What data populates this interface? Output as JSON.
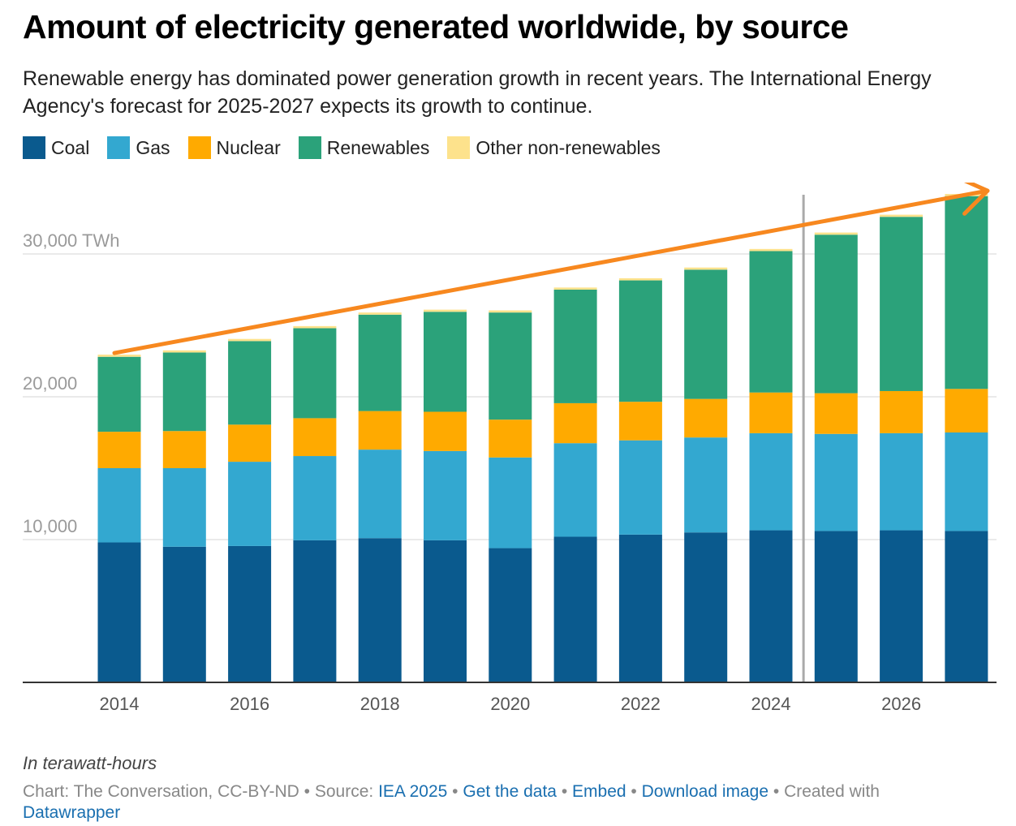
{
  "header": {
    "title": "Amount of electricity generated worldwide, by source",
    "subtitle": "Renewable energy has dominated power generation growth in recent years. The International Energy Agency's forecast for 2025-2027 expects its growth to continue."
  },
  "legend": [
    {
      "label": "Coal",
      "color": "#0a5a8e"
    },
    {
      "label": "Gas",
      "color": "#33a8d0"
    },
    {
      "label": "Nuclear",
      "color": "#ffaa00"
    },
    {
      "label": "Renewables",
      "color": "#2ba27a"
    },
    {
      "label": "Other non-renewables",
      "color": "#fde28c"
    }
  ],
  "chart_data": {
    "type": "bar",
    "stacked": true,
    "title": "Amount of electricity generated worldwide, by source",
    "x": [
      2014,
      2015,
      2016,
      2017,
      2018,
      2019,
      2020,
      2021,
      2022,
      2023,
      2024,
      2025,
      2026,
      2027
    ],
    "x_tick_labels": [
      "2014",
      "2016",
      "2018",
      "2020",
      "2022",
      "2024",
      "2026"
    ],
    "y_tick_labels": [
      "30,000 TWh",
      "20,000",
      "10,000"
    ],
    "y_ticks": [
      30000,
      20000,
      10000
    ],
    "ylim": [
      0,
      34500
    ],
    "unit_note": "In terawatt-hours",
    "forecast_from": 2025,
    "grid": true,
    "legend_position": "top-left",
    "series": [
      {
        "name": "Coal",
        "color": "#0a5a8e",
        "values": [
          9800,
          9500,
          9550,
          9950,
          10100,
          9950,
          9400,
          10200,
          10350,
          10500,
          10650,
          10600,
          10650,
          10600
        ]
      },
      {
        "name": "Gas",
        "color": "#33a8d0",
        "values": [
          5200,
          5500,
          5900,
          5900,
          6200,
          6250,
          6350,
          6550,
          6600,
          6650,
          6800,
          6800,
          6800,
          6900
        ]
      },
      {
        "name": "Nuclear",
        "color": "#ffaa00",
        "values": [
          2550,
          2600,
          2600,
          2650,
          2700,
          2750,
          2650,
          2800,
          2700,
          2700,
          2850,
          2850,
          2950,
          3050
        ]
      },
      {
        "name": "Renewables",
        "color": "#2ba27a",
        "values": [
          5250,
          5500,
          5850,
          6300,
          6750,
          7000,
          7500,
          7950,
          8500,
          9050,
          9900,
          11100,
          12200,
          13500
        ]
      },
      {
        "name": "Other non-renewables",
        "color": "#fde28c",
        "values": [
          150,
          150,
          150,
          150,
          150,
          150,
          150,
          150,
          150,
          150,
          150,
          150,
          150,
          150
        ]
      }
    ]
  },
  "footer": {
    "unit_note": "In terawatt-hours",
    "chart_credit": "Chart: The Conversation, CC-BY-ND",
    "source_label": "Source:",
    "source_link": "IEA 2025",
    "get_data": "Get the data",
    "embed": "Embed",
    "download": "Download image",
    "created_with": "Created with",
    "datawrapper": "Datawrapper",
    "separator": "•"
  }
}
